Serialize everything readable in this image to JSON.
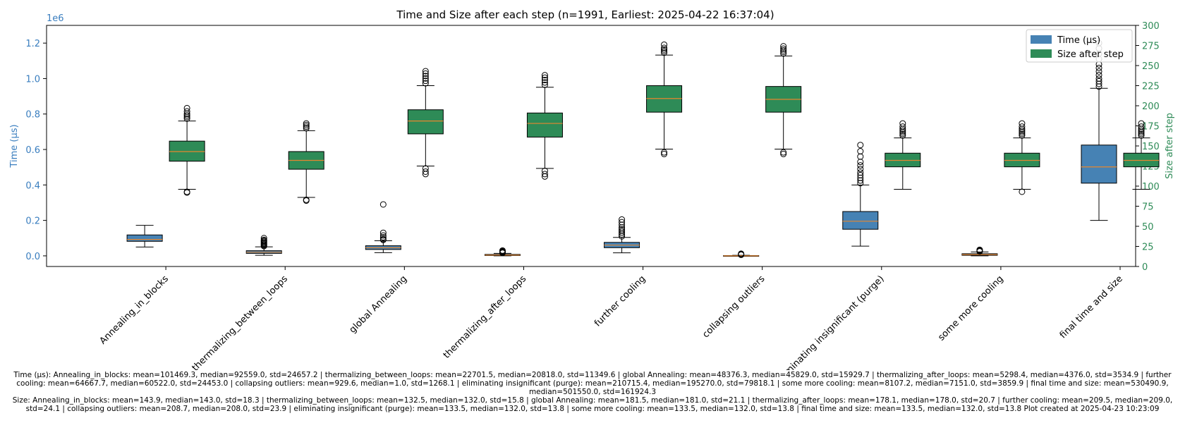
{
  "chart_data": {
    "type": "box",
    "title": "Time and Size after each step (n=1991, Earliest: 2025-04-22 16:37:04)",
    "categories": [
      "Annealing_in_blocks",
      "thermalizing_between_loops",
      "global Annealing",
      "thermalizing_after_loops",
      "further cooling",
      "collapsing outliers",
      "eliminating insignificant (purge)",
      "some more cooling",
      "final time and size"
    ],
    "y_left": {
      "label": "Time (µs)",
      "multiplier": "1e6",
      "range": [
        -0.06,
        1.3
      ],
      "ticks": [
        0.0,
        0.2,
        0.4,
        0.6,
        0.8,
        1.0,
        1.2
      ],
      "tick_labels": [
        "0.0",
        "0.2",
        "0.4",
        "0.6",
        "0.8",
        "1.0",
        "1.2"
      ],
      "color": "#3a7ebf"
    },
    "y_right": {
      "label": "Size after step",
      "range": [
        0,
        300
      ],
      "ticks": [
        0,
        25,
        50,
        75,
        100,
        125,
        150,
        175,
        200,
        225,
        250,
        275,
        300
      ],
      "tick_labels": [
        "0",
        "25",
        "50",
        "75",
        "100",
        "125",
        "150",
        "175",
        "200",
        "225",
        "250",
        "275",
        "300"
      ],
      "color": "#2e8b57"
    },
    "legend": {
      "placement": "top-right",
      "entries": [
        {
          "label": "Time (µs)",
          "color": "#4682b4"
        },
        {
          "label": "Size after step",
          "color": "#2e8b57"
        }
      ]
    },
    "series": [
      {
        "name": "Time (µs)",
        "axis": "left",
        "color": "#4682b4",
        "boxes": [
          {
            "whislo": 0.05,
            "q1": 0.082,
            "med": 0.0926,
            "q3": 0.118,
            "whishi": 0.172,
            "fliers": []
          },
          {
            "whislo": 0.003,
            "q1": 0.014,
            "med": 0.0208,
            "q3": 0.029,
            "whishi": 0.051,
            "fliers": [
              0.055,
              0.06,
              0.065,
              0.07,
              0.075,
              0.08,
              0.085,
              0.09,
              0.1
            ]
          },
          {
            "whislo": 0.018,
            "q1": 0.036,
            "med": 0.0458,
            "q3": 0.057,
            "whishi": 0.085,
            "fliers": [
              0.09,
              0.095,
              0.105,
              0.115,
              0.13,
              0.29
            ]
          },
          {
            "whislo": 0.0,
            "q1": 0.002,
            "med": 0.0044,
            "q3": 0.008,
            "whishi": 0.014,
            "fliers": [
              0.017,
              0.02,
              0.023,
              0.026,
              0.03
            ]
          },
          {
            "whislo": 0.017,
            "q1": 0.046,
            "med": 0.0605,
            "q3": 0.076,
            "whishi": 0.104,
            "fliers": [
              0.11,
              0.12,
              0.13,
              0.14,
              0.15,
              0.16,
              0.175,
              0.19,
              0.205
            ]
          },
          {
            "whislo": 0.0,
            "q1": 0.0,
            "med": 1e-06,
            "q3": 0.0015,
            "whishi": 0.003,
            "fliers": [
              0.006,
              0.009,
              0.012
            ]
          },
          {
            "whislo": 0.055,
            "q1": 0.15,
            "med": 0.1953,
            "q3": 0.25,
            "whishi": 0.4,
            "fliers": [
              0.41,
              0.425,
              0.44,
              0.455,
              0.47,
              0.49,
              0.51,
              0.53,
              0.56,
              0.59,
              0.625
            ]
          },
          {
            "whislo": 0.0,
            "q1": 0.003,
            "med": 0.0072,
            "q3": 0.012,
            "whishi": 0.022,
            "fliers": [
              0.025,
              0.028,
              0.031,
              0.034
            ]
          },
          {
            "whislo": 0.2,
            "q1": 0.41,
            "med": 0.5016,
            "q3": 0.625,
            "whishi": 0.945,
            "fliers": [
              0.955,
              0.97,
              0.985,
              1.0,
              1.02,
              1.04,
              1.06,
              1.08,
              1.11,
              1.14,
              1.17,
              1.2
            ]
          }
        ]
      },
      {
        "name": "Size after step",
        "axis": "right",
        "color": "#2e8b57",
        "boxes": [
          {
            "whislo": 96,
            "q1": 131,
            "med": 143,
            "q3": 156,
            "whishi": 181,
            "fliers": [
              92,
              93,
              184,
              186,
              188,
              190,
              193,
              197
            ]
          },
          {
            "whislo": 86,
            "q1": 121,
            "med": 132,
            "q3": 143,
            "whishi": 169,
            "fliers": [
              82,
              83,
              172,
              174,
              176,
              178
            ]
          },
          {
            "whislo": 125,
            "q1": 165,
            "med": 181,
            "q3": 195,
            "whishi": 225,
            "fliers": [
              115,
              118,
              122,
              228,
              231,
              234,
              237,
              240,
              243
            ]
          },
          {
            "whislo": 122,
            "q1": 161,
            "med": 178,
            "q3": 191,
            "whishi": 223,
            "fliers": [
              112,
              115,
              119,
              226,
              229,
              232,
              235,
              238
            ]
          },
          {
            "whislo": 146,
            "q1": 192,
            "med": 209,
            "q3": 225,
            "whishi": 263,
            "fliers": [
              140,
              142,
              266,
              268,
              270,
              272,
              276
            ]
          },
          {
            "whislo": 146,
            "q1": 192,
            "med": 208,
            "q3": 224,
            "whishi": 262,
            "fliers": [
              140,
              142,
              265,
              267,
              269,
              271,
              274
            ]
          },
          {
            "whislo": 96,
            "q1": 124,
            "med": 132,
            "q3": 141,
            "whishi": 160,
            "fliers": [
              163,
              165,
              167,
              169,
              171,
              174,
              178
            ]
          },
          {
            "whislo": 96,
            "q1": 124,
            "med": 132,
            "q3": 141,
            "whishi": 160,
            "fliers": [
              93,
              163,
              165,
              167,
              169,
              171,
              174,
              178
            ]
          },
          {
            "whislo": 96,
            "q1": 124,
            "med": 132,
            "q3": 141,
            "whishi": 160,
            "fliers": [
              163,
              165,
              167,
              169,
              171,
              174,
              178
            ]
          }
        ]
      }
    ]
  },
  "footnotes": {
    "time": "Time (µs): Annealing_in_blocks: mean=101469.3, median=92559.0, std=24657.2 | thermalizing_between_loops: mean=22701.5, median=20818.0, std=11349.6 | global Annealing: mean=48376.3, median=45829.0, std=15929.7 | thermalizing_after_loops: mean=5298.4, median=4376.0, std=3534.9 | further cooling: mean=64667.7, median=60522.0, std=24453.0 | collapsing outliers: mean=929.6, median=1.0, std=1268.1 | eliminating insignificant (purge): mean=210715.4, median=195270.0, std=79818.1 | some more cooling: mean=8107.2, median=7151.0, std=3859.9 | final time and size: mean=530490.9, median=501550.0, std=161924.3",
    "size": "Size: Annealing_in_blocks: mean=143.9, median=143.0, std=18.3 | thermalizing_between_loops: mean=132.5, median=132.0, std=15.8 | global Annealing: mean=181.5, median=181.0, std=21.1 | thermalizing_after_loops: mean=178.1, median=178.0, std=20.7 | further cooling: mean=209.5, median=209.0, std=24.1 | collapsing outliers: mean=208.7, median=208.0, std=23.9 | eliminating insignificant (purge): mean=133.5, median=132.0, std=13.8 | some more cooling: mean=133.5, median=132.0, std=13.8 | final time and size: mean=133.5, median=132.0, std=13.8    Plot created at 2025-04-23 10:23:09"
  }
}
